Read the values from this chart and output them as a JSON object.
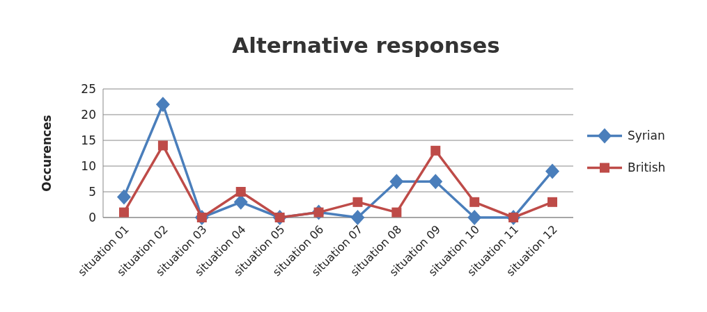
{
  "chart_data": {
    "type": "line",
    "title": "Alternative responses",
    "ylabel": "Occurences",
    "categories": [
      "situation 01",
      "situation 02",
      "situation 03",
      "situation 04",
      "situation 05",
      "situation 06",
      "situation 07",
      "situation 08",
      "situation 09",
      "situation 10",
      "situation 11",
      "situation 12"
    ],
    "series": [
      {
        "name": "Syrian",
        "color": "#4a7ebb",
        "marker": "diamond",
        "values": [
          4,
          22,
          0,
          3,
          0,
          1,
          0,
          7,
          7,
          0,
          0,
          9
        ]
      },
      {
        "name": "British",
        "color": "#be4b48",
        "marker": "square",
        "values": [
          1,
          14,
          0,
          5,
          0,
          1,
          3,
          1,
          13,
          3,
          0,
          3
        ]
      }
    ],
    "ylim": [
      0,
      25
    ],
    "yticks": [
      0,
      5,
      10,
      15,
      20,
      25
    ],
    "grid": "y",
    "legend": "right",
    "line_style": "solid"
  }
}
